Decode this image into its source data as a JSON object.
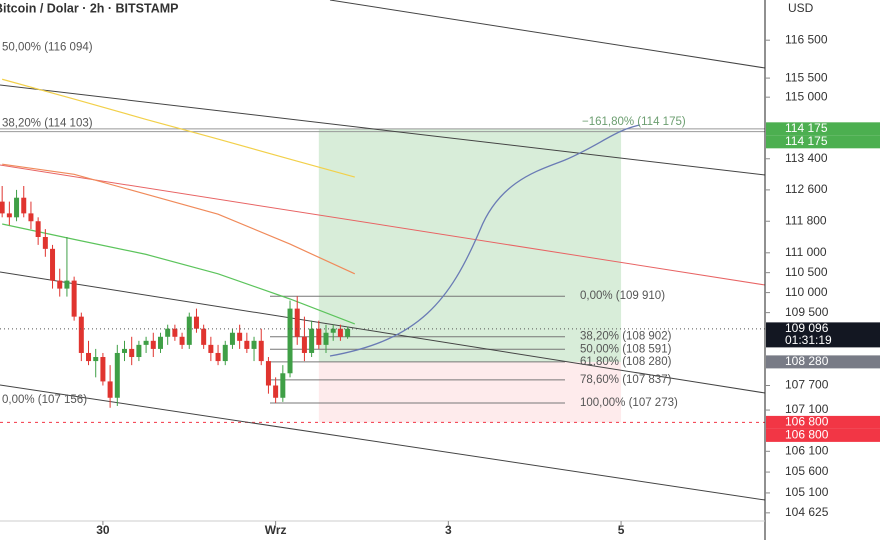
{
  "chart_data": {
    "type": "candlestick",
    "title": "Bitcoin / Dolar · 2h · BITSTAMP",
    "currency": "USD",
    "log_scale": true,
    "xlim": [
      -0.3,
      106
    ],
    "ylim": [
      104455,
      117570
    ],
    "xticks": [
      {
        "value": 14,
        "label": "30"
      },
      {
        "value": 38,
        "label": "Wrz"
      },
      {
        "value": 62,
        "label": "3"
      },
      {
        "value": 86,
        "label": "5"
      }
    ],
    "yticks": [
      {
        "value": 116500,
        "label": "116 500"
      },
      {
        "value": 115500,
        "label": "115 500"
      },
      {
        "value": 115000,
        "label": "115 000"
      },
      {
        "value": 113400,
        "label": "113 400"
      },
      {
        "value": 112600,
        "label": "112 600"
      },
      {
        "value": 111800,
        "label": "111 800"
      },
      {
        "value": 111000,
        "label": "111 000"
      },
      {
        "value": 110500,
        "label": "110 500"
      },
      {
        "value": 110000,
        "label": "110 000"
      },
      {
        "value": 109500,
        "label": "109 500"
      },
      {
        "value": 107700,
        "label": "107 700"
      },
      {
        "value": 107100,
        "label": "107 100"
      },
      {
        "value": 106100,
        "label": "106 100"
      },
      {
        "value": 105600,
        "label": "105 600"
      },
      {
        "value": 105100,
        "label": "105 100"
      },
      {
        "value": 104625,
        "label": "104 625"
      }
    ],
    "up_color": "#3f9f46",
    "down_color": "#e0342f",
    "candles": {
      "x": [
        0,
        1,
        2,
        3,
        4,
        5,
        6,
        7,
        8,
        9,
        10,
        11,
        12,
        13,
        14,
        15,
        16,
        17,
        18,
        19,
        20,
        21,
        22,
        23,
        24,
        25,
        26,
        27,
        28,
        29,
        30,
        31,
        32,
        33,
        34,
        35,
        36,
        37,
        38,
        39,
        40,
        41,
        42,
        43,
        44,
        45,
        46,
        47,
        48
      ],
      "open": [
        112300,
        112000,
        111900,
        112400,
        112000,
        111800,
        111400,
        111100,
        110300,
        110100,
        110300,
        109400,
        108500,
        108300,
        108400,
        107800,
        107400,
        108500,
        108600,
        108400,
        108700,
        108800,
        108600,
        108900,
        109100,
        108900,
        108700,
        109400,
        109100,
        108700,
        108500,
        108300,
        108700,
        109000,
        108800,
        108600,
        108800,
        108300,
        107700,
        107400,
        108000,
        109600,
        108900,
        108500,
        109100,
        108700,
        109000,
        109100,
        108900
      ],
      "high": [
        112700,
        112300,
        112600,
        112700,
        112300,
        111900,
        111600,
        111200,
        110600,
        111400,
        110400,
        109500,
        108800,
        108600,
        108500,
        108200,
        108700,
        108800,
        108900,
        108800,
        108900,
        109000,
        109000,
        109200,
        109200,
        109000,
        109500,
        109600,
        109200,
        108900,
        108700,
        108800,
        109100,
        109200,
        109000,
        108900,
        109100,
        108400,
        107900,
        108200,
        109800,
        109910,
        109400,
        109300,
        109300,
        109200,
        109200,
        109200,
        109150
      ],
      "low": [
        111900,
        111700,
        111800,
        111900,
        111600,
        111200,
        110900,
        110100,
        109900,
        109900,
        109300,
        108300,
        108200,
        107900,
        107700,
        107156,
        107200,
        108300,
        108200,
        108300,
        108500,
        108400,
        108500,
        108700,
        108800,
        108600,
        108600,
        109000,
        108600,
        108300,
        108200,
        108200,
        108600,
        108600,
        108500,
        108300,
        108200,
        107500,
        107273,
        107300,
        107900,
        108700,
        108300,
        108400,
        108600,
        108500,
        108800,
        108800,
        108850
      ],
      "close": [
        112000,
        111900,
        112400,
        112000,
        111800,
        111400,
        111100,
        110300,
        110100,
        110300,
        109400,
        108500,
        108300,
        108400,
        107800,
        107400,
        108500,
        108600,
        108400,
        108700,
        108800,
        108600,
        108900,
        109100,
        108900,
        108700,
        109400,
        109100,
        108700,
        108500,
        108300,
        108700,
        109000,
        108800,
        108600,
        108800,
        108300,
        107700,
        107400,
        108000,
        109600,
        108900,
        108500,
        109100,
        108700,
        109000,
        109100,
        108900,
        109096
      ]
    },
    "lines": [
      {
        "color": "#f2d04a",
        "x": [
          0,
          10,
          20,
          30,
          40,
          49
        ],
        "values": [
          115470,
          114950,
          114420,
          113910,
          113390,
          112930
        ]
      },
      {
        "color": "#f08a5a",
        "x": [
          0,
          10,
          20,
          30,
          40,
          49
        ],
        "values": [
          113260,
          113000,
          112490,
          111980,
          111220,
          110470
        ]
      },
      {
        "color": "#5cc45c",
        "x": [
          0,
          10,
          20,
          30,
          40,
          49
        ],
        "values": [
          111730,
          111340,
          110960,
          110470,
          109840,
          109220
        ]
      }
    ],
    "position": {
      "x": [
        44,
        86
      ],
      "target": 114175,
      "entry": 108280,
      "stop": 106800
    },
    "fib_levels": [
      {
        "value": 109910,
        "label": "0,00% (109 910)"
      },
      {
        "value": 108902,
        "label": "38,20% (108 902)"
      },
      {
        "value": 108591,
        "label": "50,00% (108 591)"
      },
      {
        "value": 108280,
        "label": "61,80% (108 280)"
      },
      {
        "value": 107837,
        "label": "78,60% (107 837)"
      },
      {
        "value": 107273,
        "label": "100,00% (107 273)"
      }
    ],
    "fib_extension": {
      "value": 114175,
      "label": "−161,80% (114 175)"
    },
    "fib_left": [
      {
        "value": 116094,
        "label": "50,00% (116 094)"
      },
      {
        "value": 114103,
        "label": "38,20% (114 103)"
      },
      {
        "value": 107156,
        "label": "0,00% (107 156)"
      }
    ],
    "price_labels": [
      {
        "value": 114175,
        "label": "114 175",
        "color": "#4caf50"
      },
      {
        "value": 114175,
        "label": "114 175",
        "color": "#4caf50"
      },
      {
        "value": 109096,
        "label": "109 096",
        "sublabel": "01:31:19",
        "color": "#131722"
      },
      {
        "value": 108280,
        "label": "108 280",
        "color": "#787b86"
      },
      {
        "value": 106800,
        "label": "106 800",
        "color": "#f23645"
      },
      {
        "value": 106800,
        "label": "106 800",
        "color": "#f23645"
      }
    ]
  }
}
